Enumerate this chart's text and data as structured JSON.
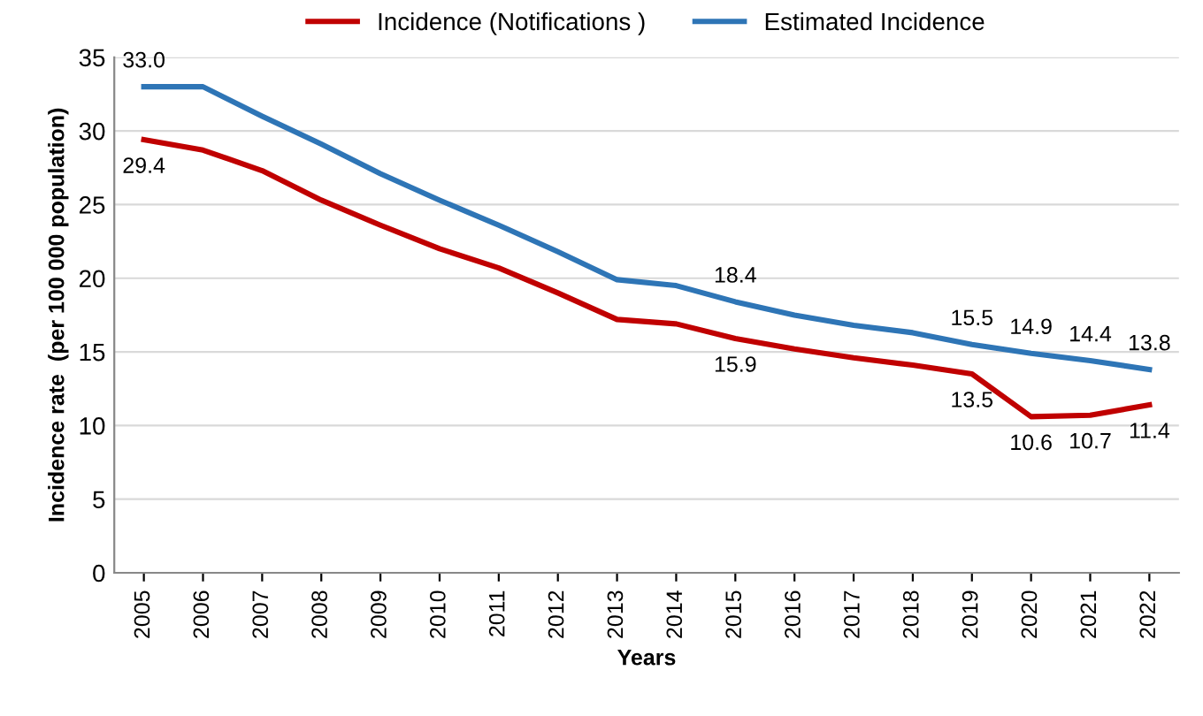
{
  "chart_data": {
    "type": "line",
    "xlabel": "Years",
    "ylabel": "Incidence rate  (per 100 000 population)",
    "categories": [
      "2005",
      "2006",
      "2007",
      "2008",
      "2009",
      "2010",
      "2011",
      "2012",
      "2013",
      "2014",
      "2015",
      "2016",
      "2017",
      "2018",
      "2019",
      "2020",
      "2021",
      "2022"
    ],
    "series": [
      {
        "name": "Incidence (Notifications )",
        "color": "#c00000",
        "values": [
          29.4,
          28.7,
          27.3,
          25.3,
          23.6,
          22.0,
          20.7,
          19.0,
          17.2,
          16.9,
          15.9,
          15.2,
          14.6,
          14.1,
          13.5,
          10.6,
          10.7,
          11.4
        ],
        "value_labels": [
          "29.4",
          null,
          null,
          null,
          null,
          null,
          null,
          null,
          null,
          null,
          "15.9",
          null,
          null,
          null,
          "13.5",
          "10.6",
          "10.7",
          "11.4"
        ]
      },
      {
        "name": "Estimated Incidence",
        "color": "#2e75b6",
        "values": [
          33.0,
          33.0,
          31.0,
          29.1,
          27.1,
          25.3,
          23.6,
          21.8,
          19.9,
          19.5,
          18.4,
          17.5,
          16.8,
          16.3,
          15.5,
          14.9,
          14.4,
          13.8
        ],
        "value_labels": [
          "33.0",
          null,
          null,
          null,
          null,
          null,
          null,
          null,
          null,
          null,
          "18.4",
          null,
          null,
          null,
          "15.5",
          "14.9",
          "14.4",
          "13.8"
        ]
      }
    ],
    "ylim": [
      0,
      35
    ],
    "yticks": [
      0,
      5,
      10,
      15,
      20,
      25,
      30,
      35
    ],
    "grid": "y",
    "legend": "top",
    "marker": "none",
    "line_style": "solid"
  }
}
